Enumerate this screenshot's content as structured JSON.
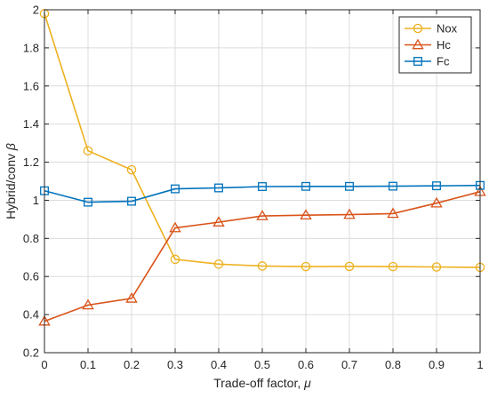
{
  "chart_data": {
    "type": "line",
    "xlabel": "Trade-off factor, ",
    "xlabel_symbol": "μ",
    "ylabel": "Hybrid/conv ",
    "ylabel_symbol": "β",
    "x": [
      0,
      0.1,
      0.2,
      0.3,
      0.4,
      0.5,
      0.6,
      0.7,
      0.8,
      0.9,
      1
    ],
    "xlim": [
      0,
      1
    ],
    "ylim": [
      0.2,
      2
    ],
    "xticks": [
      "0",
      "0.1",
      "0.2",
      "0.3",
      "0.4",
      "0.5",
      "0.6",
      "0.7",
      "0.8",
      "0.9",
      "1"
    ],
    "yticks": [
      "0.2",
      "0.4",
      "0.6",
      "0.8",
      "1",
      "1.2",
      "1.4",
      "1.6",
      "1.8",
      "2"
    ],
    "grid": true,
    "legend_position": "top-right",
    "series": [
      {
        "name": "Nox",
        "color": "#EDB120",
        "marker": "circle",
        "values": [
          1.98,
          1.26,
          1.16,
          0.69,
          0.665,
          0.655,
          0.652,
          0.653,
          0.652,
          0.65,
          0.648
        ]
      },
      {
        "name": "Hc",
        "color": "#D95319",
        "marker": "triangle",
        "values": [
          0.365,
          0.45,
          0.485,
          0.855,
          0.885,
          0.918,
          0.922,
          0.925,
          0.93,
          0.985,
          1.045
        ]
      },
      {
        "name": "Fc",
        "color": "#0072BD",
        "marker": "square",
        "values": [
          1.05,
          0.99,
          0.995,
          1.06,
          1.065,
          1.072,
          1.073,
          1.073,
          1.074,
          1.076,
          1.078
        ]
      }
    ]
  }
}
